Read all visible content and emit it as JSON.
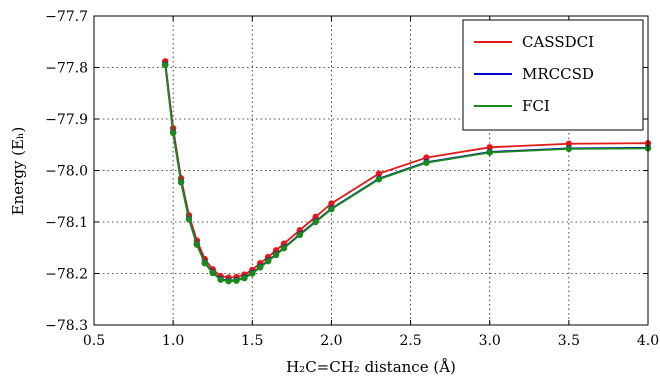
{
  "chart_data": {
    "type": "line",
    "xlabel": "H₂C=CH₂ distance (Å)",
    "ylabel": "Energy (Eₕ)",
    "xlim": [
      0.5,
      4.0
    ],
    "ylim": [
      -78.3,
      -77.7
    ],
    "xticks": [
      "0.5",
      "1.0",
      "1.5",
      "2.0",
      "2.5",
      "3.0",
      "3.5",
      "4.0"
    ],
    "yticks": [
      "−77.7",
      "−77.8",
      "−77.9",
      "−78.0",
      "−78.1",
      "−78.2",
      "−78.3"
    ],
    "grid": true,
    "legend_position": "top-right",
    "series": [
      {
        "name": "CASSDCI",
        "color": "#e31a1c",
        "x": [
          0.95,
          1.0,
          1.05,
          1.1,
          1.15,
          1.2,
          1.25,
          1.3,
          1.35,
          1.4,
          1.45,
          1.5,
          1.55,
          1.6,
          1.65,
          1.7,
          1.8,
          1.9,
          2.0,
          2.3,
          2.6,
          3.0,
          3.5,
          4.0
        ],
        "y": [
          -77.788,
          -77.918,
          -78.015,
          -78.087,
          -78.136,
          -78.172,
          -78.192,
          -78.205,
          -78.208,
          -78.207,
          -78.202,
          -78.193,
          -78.18,
          -78.168,
          -78.155,
          -78.142,
          -78.116,
          -78.09,
          -78.064,
          -78.006,
          -77.975,
          -77.955,
          -77.948,
          -77.947
        ]
      },
      {
        "name": "MRCCSD",
        "color": "#0000cc",
        "x": [
          0.95,
          1.0,
          1.05,
          1.1,
          1.15,
          1.2,
          1.25,
          1.3,
          1.35,
          1.4,
          1.45,
          1.5,
          1.55,
          1.6,
          1.65,
          1.7,
          1.8,
          1.9,
          2.0,
          2.3,
          2.6,
          3.0,
          3.5,
          4.0
        ],
        "y": [
          -77.794,
          -77.926,
          -78.022,
          -78.094,
          -78.143,
          -78.179,
          -78.198,
          -78.211,
          -78.214,
          -78.213,
          -78.208,
          -78.199,
          -78.187,
          -78.175,
          -78.163,
          -78.15,
          -78.124,
          -78.099,
          -78.074,
          -78.016,
          -77.984,
          -77.964,
          -77.957,
          -77.956
        ]
      },
      {
        "name": "FCI",
        "color": "#1a8a1a",
        "x": [
          0.95,
          1.0,
          1.05,
          1.1,
          1.15,
          1.2,
          1.25,
          1.3,
          1.35,
          1.4,
          1.45,
          1.5,
          1.55,
          1.6,
          1.65,
          1.7,
          1.8,
          1.9,
          2.0,
          2.3,
          2.6,
          3.0,
          3.5,
          4.0
        ],
        "y": [
          -77.795,
          -77.927,
          -78.023,
          -78.095,
          -78.144,
          -78.18,
          -78.199,
          -78.212,
          -78.215,
          -78.214,
          -78.209,
          -78.2,
          -78.188,
          -78.176,
          -78.164,
          -78.151,
          -78.125,
          -78.1,
          -78.075,
          -78.017,
          -77.985,
          -77.965,
          -77.958,
          -77.957
        ]
      }
    ]
  }
}
